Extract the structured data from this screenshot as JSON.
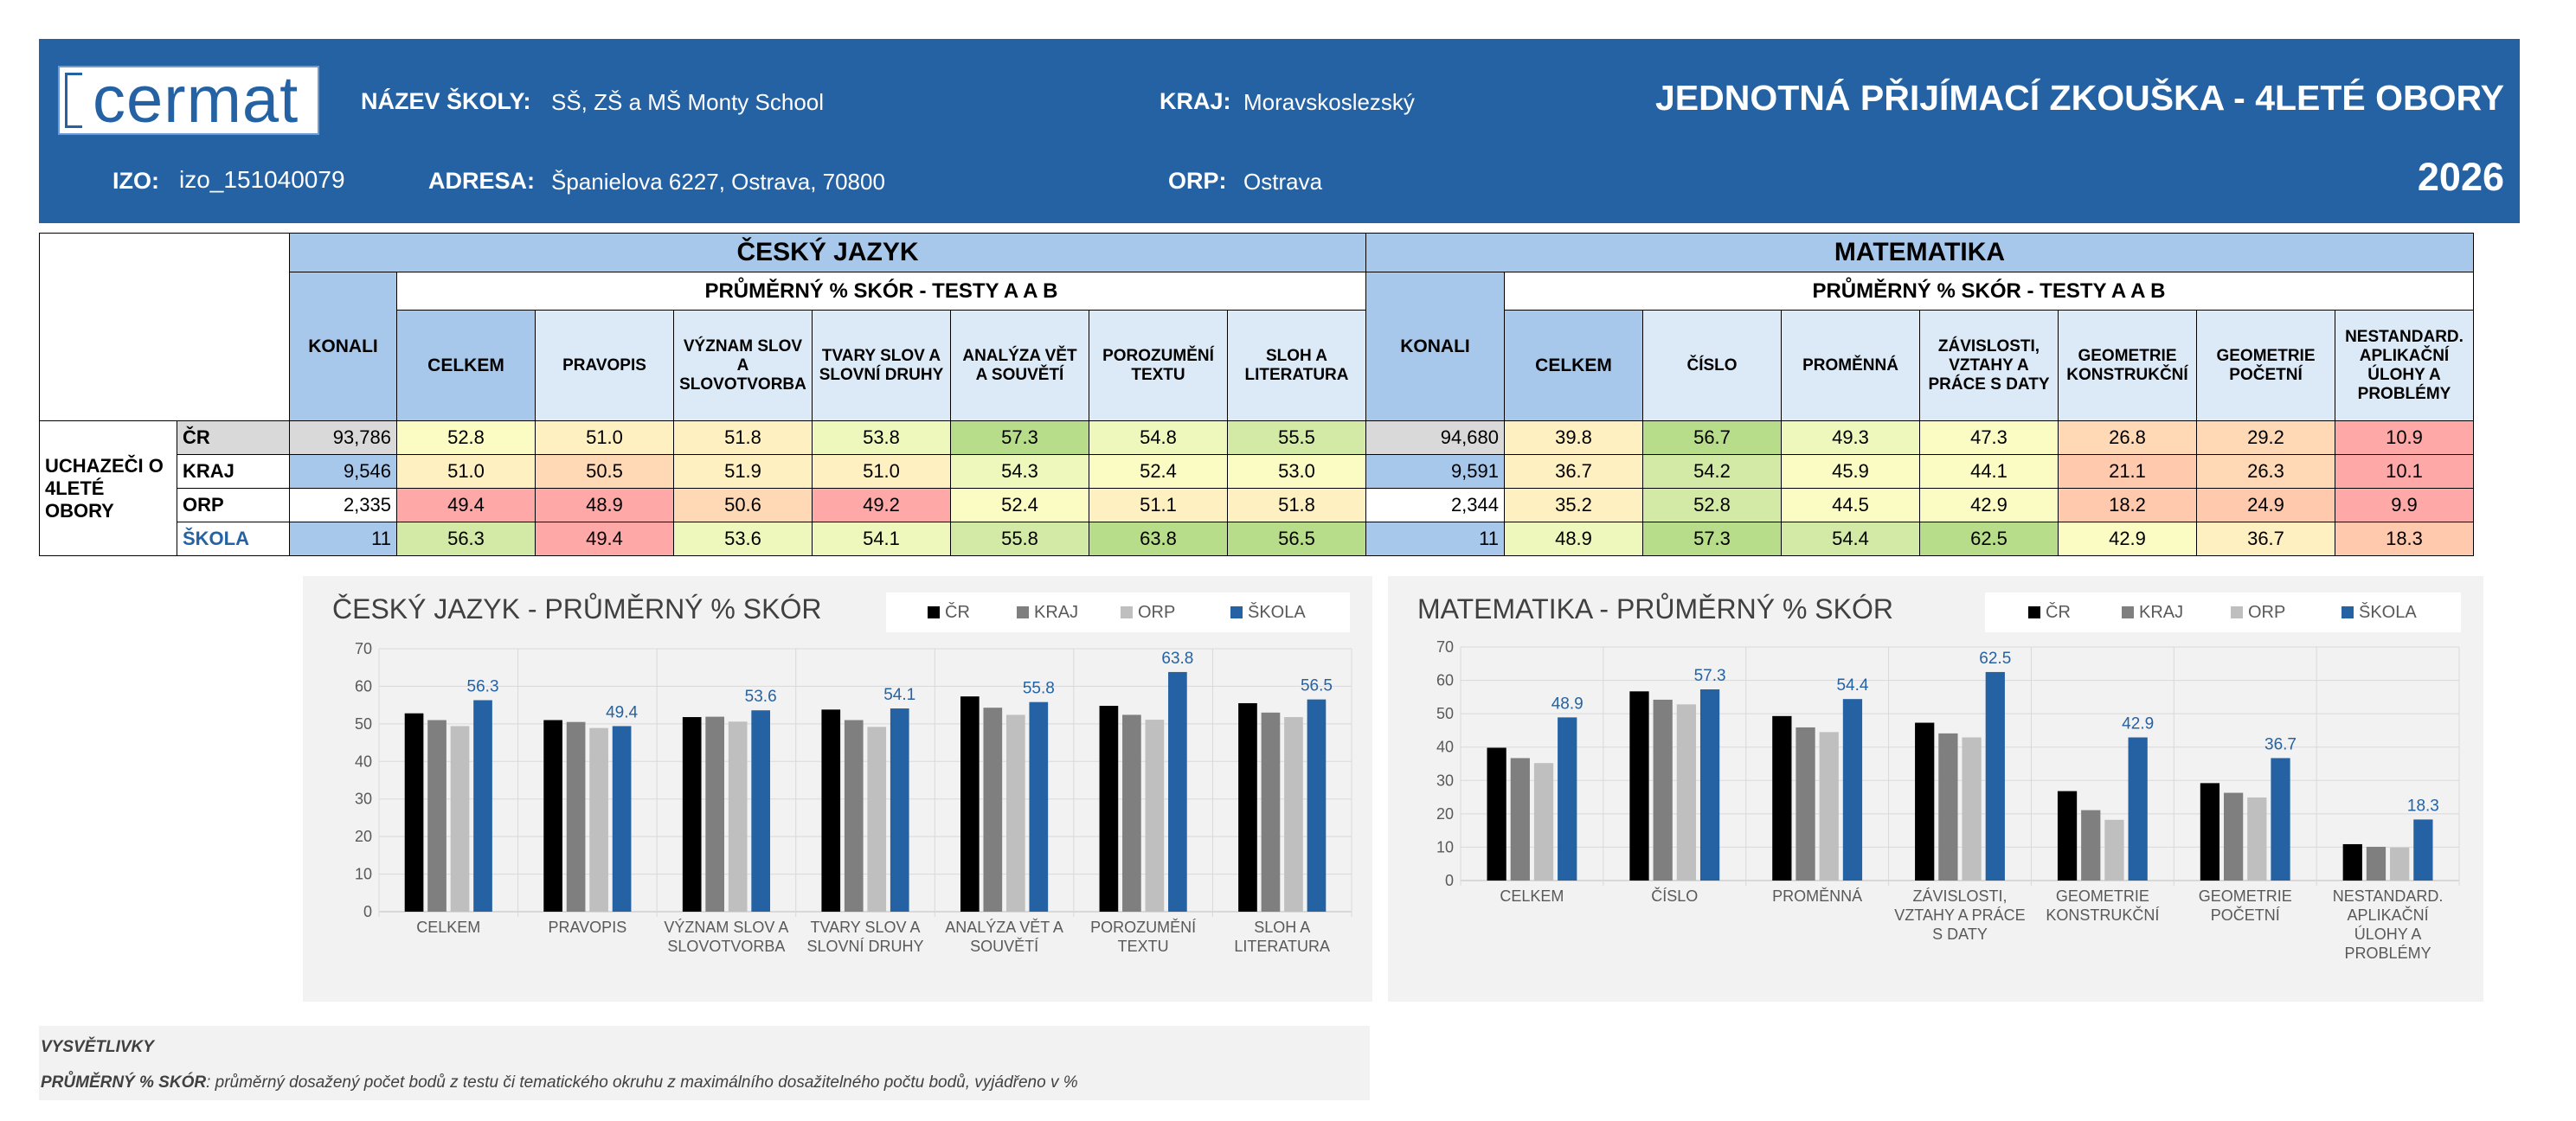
{
  "header": {
    "logo_text": "cermat",
    "school_label": "NÁZEV ŠKOLY:",
    "school_value": "SŠ, ZŠ a MŠ Monty School",
    "kraj_label": "KRAJ:",
    "kraj_value": "Moravskoslezský",
    "izo_label": "IZO:",
    "izo_value": "izo_151040079",
    "adresa_label": "ADRESA:",
    "adresa_value": "Španielova 6227, Ostrava, 70800",
    "orp_label": "ORP:",
    "orp_value": "Ostrava",
    "title": "JEDNOTNÁ PŘIJÍMACÍ ZKOUŠKA - 4LETÉ OBORY",
    "year": "2026"
  },
  "table": {
    "group_label": "UCHAZEČI O 4LETÉ OBORY",
    "row_labels": [
      "ČR",
      "KRAJ",
      "ORP",
      "ŠKOLA"
    ],
    "konali_label": "KONALI",
    "subheader": "PRŮMĚRNÝ % SKÓR - TESTY A A B",
    "cj": {
      "title": "ČESKÝ JAZYK",
      "columns": [
        "CELKEM",
        "PRAVOPIS",
        "VÝZNAM SLOV A SLOVOTVORBA",
        "TVARY SLOV A SLOVNÍ DRUHY",
        "ANALÝZA VĚT A SOUVĚTÍ",
        "POROZUMĚNÍ TEXTU",
        "SLOH A LITERATURA"
      ],
      "konali": [
        "93,786",
        "9,546",
        "2,335",
        "11"
      ],
      "rows": [
        [
          "52.8",
          "51.0",
          "51.8",
          "53.8",
          "57.3",
          "54.8",
          "55.5"
        ],
        [
          "51.0",
          "50.5",
          "51.9",
          "51.0",
          "54.3",
          "52.4",
          "53.0"
        ],
        [
          "49.4",
          "48.9",
          "50.6",
          "49.2",
          "52.4",
          "51.1",
          "51.8"
        ],
        [
          "56.3",
          "49.4",
          "53.6",
          "54.1",
          "55.8",
          "63.8",
          "56.5"
        ]
      ]
    },
    "ma": {
      "title": "MATEMATIKA",
      "columns": [
        "CELKEM",
        "ČÍSLO",
        "PROMĚNNÁ",
        "ZÁVISLOSTI, VZTAHY A PRÁCE S DATY",
        "GEOMETRIE KONSTRUKČNÍ",
        "GEOMETRIE POČETNÍ",
        "NESTANDARD. APLIKAČNÍ ÚLOHY A PROBLÉMY"
      ],
      "konali": [
        "94,680",
        "9,591",
        "2,344",
        "11"
      ],
      "rows": [
        [
          "39.8",
          "56.7",
          "49.3",
          "47.3",
          "26.8",
          "29.2",
          "10.9"
        ],
        [
          "36.7",
          "54.2",
          "45.9",
          "44.1",
          "21.1",
          "26.3",
          "10.1"
        ],
        [
          "35.2",
          "52.8",
          "44.5",
          "42.9",
          "18.2",
          "24.9",
          "9.9"
        ],
        [
          "48.9",
          "57.3",
          "54.4",
          "62.5",
          "42.9",
          "36.7",
          "18.3"
        ]
      ]
    }
  },
  "legend": [
    "ČR",
    "KRAJ",
    "ORP",
    "ŠKOLA"
  ],
  "colors": {
    "header_bg": "#2562a3",
    "series": [
      "#000000",
      "#7f7f7f",
      "#bfbfbf",
      "#2562a3"
    ],
    "heat_low": "#ffa8a8",
    "heat_mid": "#ffffc4",
    "heat_high": "#b8dd8a"
  },
  "chart_data": [
    {
      "type": "bar",
      "title": "ČESKÝ JAZYK - PRŮMĚRNÝ % SKÓR",
      "categories": [
        "CELKEM",
        "PRAVOPIS",
        "VÝZNAM SLOV A SLOVOTVORBA",
        "TVARY SLOV A SLOVNÍ DRUHY",
        "ANALÝZA VĚT A SOUVĚTÍ",
        "POROZUMĚNÍ TEXTU",
        "SLOH A LITERATURA"
      ],
      "category_lines": [
        [
          "CELKEM"
        ],
        [
          "PRAVOPIS"
        ],
        [
          "VÝZNAM SLOV A",
          "SLOVOTVORBA"
        ],
        [
          "TVARY SLOV A",
          "SLOVNÍ DRUHY"
        ],
        [
          "ANALÝZA VĚT A",
          "SOUVĚTÍ"
        ],
        [
          "POROZUMĚNÍ",
          "TEXTU"
        ],
        [
          "SLOH A",
          "LITERATURA"
        ]
      ],
      "series": [
        {
          "name": "ČR",
          "values": [
            52.8,
            51.0,
            51.8,
            53.8,
            57.3,
            54.8,
            55.5
          ]
        },
        {
          "name": "KRAJ",
          "values": [
            51.0,
            50.5,
            51.9,
            51.0,
            54.3,
            52.4,
            53.0
          ]
        },
        {
          "name": "ORP",
          "values": [
            49.4,
            48.9,
            50.6,
            49.2,
            52.4,
            51.1,
            51.8
          ]
        },
        {
          "name": "ŠKOLA",
          "values": [
            56.3,
            49.4,
            53.6,
            54.1,
            55.8,
            63.8,
            56.5
          ]
        }
      ],
      "labeled_series": "ŠKOLA",
      "ylim": [
        0,
        70
      ],
      "yticks": [
        0,
        10,
        20,
        30,
        40,
        50,
        60,
        70
      ],
      "grid": true,
      "legend_position": "top-right"
    },
    {
      "type": "bar",
      "title": "MATEMATIKA - PRŮMĚRNÝ % SKÓR",
      "categories": [
        "CELKEM",
        "ČÍSLO",
        "PROMĚNNÁ",
        "ZÁVISLOSTI, VZTAHY A PRÁCE S DATY",
        "GEOMETRIE KONSTRUKČNÍ",
        "GEOMETRIE POČETNÍ",
        "NESTANDARD. APLIKAČNÍ ÚLOHY A PROBLÉMY"
      ],
      "category_lines": [
        [
          "CELKEM"
        ],
        [
          "ČÍSLO"
        ],
        [
          "PROMĚNNÁ"
        ],
        [
          "ZÁVISLOSTI,",
          "VZTAHY A PRÁCE",
          "S DATY"
        ],
        [
          "GEOMETRIE",
          "KONSTRUKČNÍ"
        ],
        [
          "GEOMETRIE",
          "POČETNÍ"
        ],
        [
          "NESTANDARD.",
          "APLIKAČNÍ",
          "ÚLOHY A",
          "PROBLÉMY"
        ]
      ],
      "series": [
        {
          "name": "ČR",
          "values": [
            39.8,
            56.7,
            49.3,
            47.3,
            26.8,
            29.2,
            10.9
          ]
        },
        {
          "name": "KRAJ",
          "values": [
            36.7,
            54.2,
            45.9,
            44.1,
            21.1,
            26.3,
            10.1
          ]
        },
        {
          "name": "ORP",
          "values": [
            35.2,
            52.8,
            44.5,
            42.9,
            18.2,
            24.9,
            9.9
          ]
        },
        {
          "name": "ŠKOLA",
          "values": [
            48.9,
            57.3,
            54.4,
            62.5,
            42.9,
            36.7,
            18.3
          ]
        }
      ],
      "labeled_series": "ŠKOLA",
      "ylim": [
        0,
        70
      ],
      "yticks": [
        0,
        10,
        20,
        30,
        40,
        50,
        60,
        70
      ],
      "grid": true,
      "legend_position": "top-right"
    }
  ],
  "footer": {
    "heading": "VYSVĚTLIVKY",
    "term": "PRŮMĚRNÝ % SKÓR",
    "definition": ": průměrný dosažený počet bodů z testu či tematického okruhu z maximálního dosažitelného počtu bodů, vyjádřeno v %"
  }
}
